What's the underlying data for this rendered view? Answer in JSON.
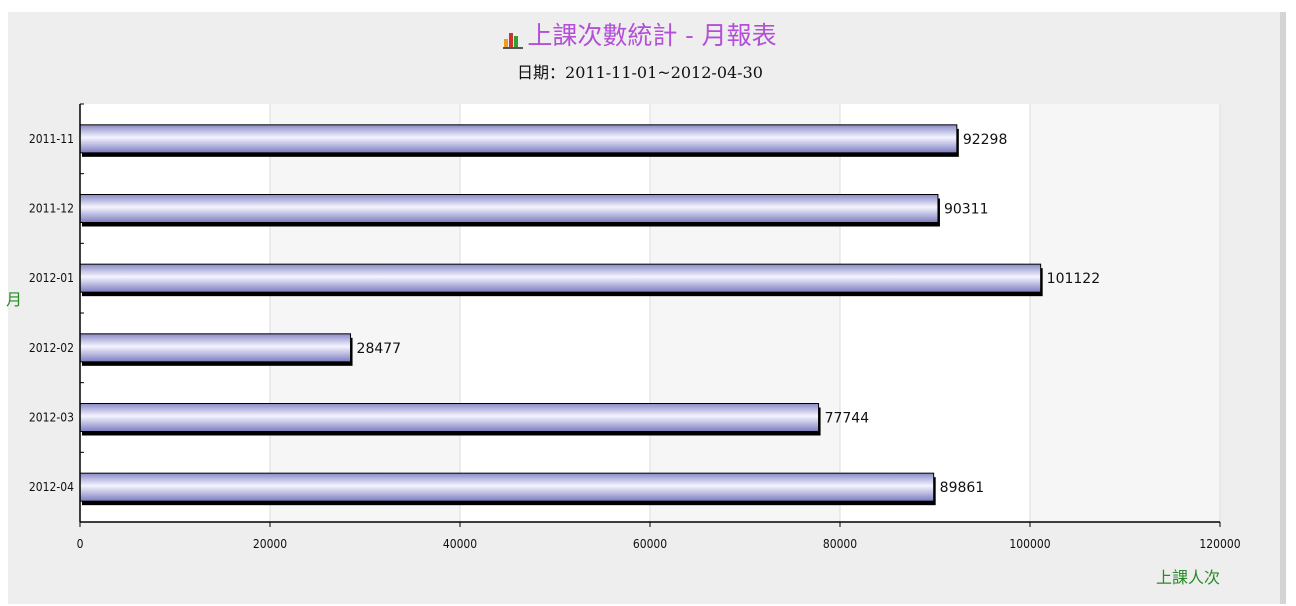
{
  "header": {
    "title": "上課次數統計 - 月報表",
    "subtitle": "日期：2011-11-01~2012-04-30",
    "title_icon": "bar-chart-icon"
  },
  "chart_data": {
    "type": "bar",
    "orientation": "horizontal",
    "title": "上課次數統計 - 月報表",
    "subtitle": "日期：2011-11-01~2012-04-30",
    "categories": [
      "2011-11",
      "2011-12",
      "2012-01",
      "2012-02",
      "2012-03",
      "2012-04"
    ],
    "values": [
      92298,
      90311,
      101122,
      28477,
      77744,
      89861
    ],
    "data_labels": [
      "92298",
      "90311",
      "101122",
      "28477",
      "77744",
      "89861"
    ],
    "xlabel": "上課人次",
    "ylabel": "月",
    "xlim": [
      0,
      120000
    ],
    "xticks": [
      "0",
      "20000",
      "40000",
      "60000",
      "80000",
      "100000",
      "120000"
    ],
    "grid": "vertical",
    "legend": "none",
    "colors": {
      "bar_light": "#f2f2ff",
      "bar_dark": "#8484c4",
      "bar_shadow": "#000000",
      "title": "#b44fd8",
      "axis_title": "#2a8a2a",
      "band_a": "#ffffff",
      "band_b": "#f6f6f6"
    }
  }
}
